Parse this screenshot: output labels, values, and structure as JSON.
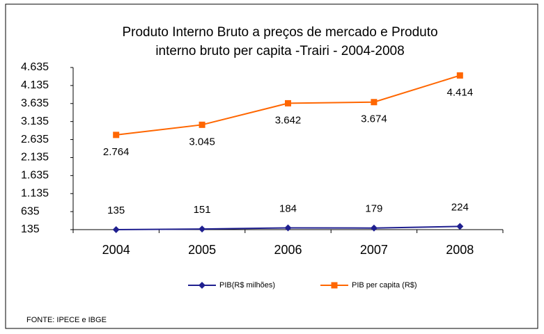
{
  "chart_data": {
    "type": "line",
    "title": [
      "Produto Interno Bruto a preços de mercado e  Produto",
      "interno bruto per capita -Trairi - 2004-2008"
    ],
    "categories": [
      "2004",
      "2005",
      "2006",
      "2007",
      "2008"
    ],
    "series": [
      {
        "name": "PIB(R$ milhões)",
        "color": "#1f1f8f",
        "marker": "diamond",
        "values": [
          135,
          151,
          184,
          179,
          224
        ]
      },
      {
        "name": "PIB per capita (R$)",
        "color": "#ff6600",
        "marker": "square",
        "values": [
          2764,
          3045,
          3642,
          3674,
          4414
        ],
        "value_labels": [
          "2.764",
          "3.045",
          "3.642",
          "3.674",
          "4.414"
        ]
      }
    ],
    "ylim": [
      135,
      4635
    ],
    "yticks": [
      135,
      635,
      {
        "value": 1135,
        "label": "1.135"
      },
      {
        "value": 1635,
        "label": "1.635"
      },
      {
        "value": 2135,
        "label": "2.135"
      },
      {
        "value": 2635,
        "label": "2.635"
      },
      {
        "value": 3135,
        "label": "3.135"
      },
      {
        "value": 3635,
        "label": "3.635"
      },
      {
        "value": 4135,
        "label": "4.135"
      },
      {
        "value": 4635,
        "label": "4.635"
      }
    ],
    "grid": false,
    "legend": "bottom",
    "source": "FONTE: IPECE e IBGE"
  }
}
